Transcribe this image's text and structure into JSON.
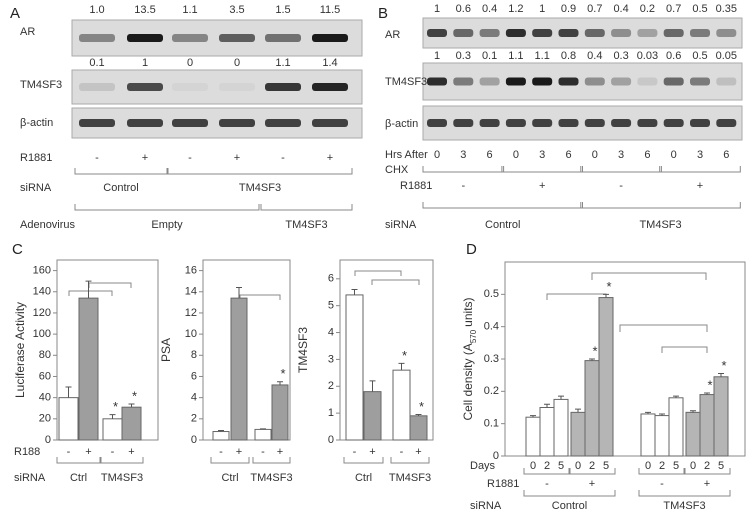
{
  "panels": [
    {
      "label": "A",
      "blots": [
        {
          "name": "AR",
          "quant": [
            "1.0",
            "13.5",
            "1.1",
            "3.5",
            "1.5",
            "11.5"
          ]
        },
        {
          "name": "TM4SF3",
          "quant": [
            "0.1",
            "1",
            "0",
            "0",
            "1.1",
            "1.4"
          ]
        },
        {
          "name": "β-actin"
        }
      ],
      "rows": [
        {
          "label": "R1881",
          "labels": [
            "-",
            "+",
            "-",
            "+",
            "-",
            "+"
          ]
        },
        {
          "label": "siRNA",
          "labels": [
            "Control",
            "TM4SF3"
          ]
        },
        {
          "label": "Adenovirus",
          "labels": [
            "Empty",
            "TM4SF3"
          ]
        }
      ]
    },
    {
      "label": "B",
      "blots": [
        {
          "name": "AR",
          "quant": [
            "1",
            "0.6",
            "0.4",
            "1.2",
            "1",
            "0.9",
            "0.7",
            "0.4",
            "0.2",
            "0.7",
            "0.5",
            "0.35"
          ]
        },
        {
          "name": "TM4SF3",
          "quant": [
            "1",
            "0.3",
            "0.1",
            "1.1",
            "1.1",
            "0.8",
            "0.4",
            "0.3",
            "0.03",
            "0.6",
            "0.5",
            "0.05"
          ]
        },
        {
          "name": "β-actin"
        }
      ],
      "rows": [
        {
          "label": [
            "Hrs After",
            "CHX"
          ],
          "labels": [
            "0",
            "3",
            "6",
            "0",
            "3",
            "6",
            "0",
            "3",
            "6",
            "0",
            "3",
            "6"
          ]
        },
        {
          "label": "R1881",
          "labels": [
            "-",
            "+",
            "-",
            "+"
          ]
        },
        {
          "label": "siRNA",
          "labels": [
            "Control",
            "TM4SF3"
          ]
        }
      ]
    }
  ],
  "chart_data": [
    {
      "type": "bar",
      "panel": "C",
      "ylabel": "Luciferase Activity",
      "ylim": [
        0,
        170
      ],
      "yticks": [
        0,
        20,
        40,
        60,
        80,
        100,
        120,
        140,
        160
      ],
      "values": [
        40,
        134,
        20,
        31
      ],
      "errors": [
        10,
        16,
        4,
        3
      ],
      "colors": [
        "#ffffff",
        "#9e9e9e",
        "#ffffff",
        "#9e9e9e"
      ],
      "markers": [
        null,
        null,
        "*",
        "*"
      ],
      "category_label": "R188",
      "categories": [
        "-",
        "+",
        "-",
        "+"
      ],
      "rows": [
        {
          "label": "siRNA",
          "labels": [
            "Ctrl",
            "TM4SF3"
          ]
        }
      ]
    },
    {
      "type": "bar",
      "ylabel": "PSA",
      "ylim": [
        0,
        17
      ],
      "yticks": [
        0,
        2,
        4,
        6,
        8,
        10,
        12,
        14,
        16
      ],
      "values": [
        0.8,
        13.4,
        1.0,
        5.2
      ],
      "errors": [
        0.1,
        1.0,
        0.05,
        0.3
      ],
      "colors": [
        "#ffffff",
        "#9e9e9e",
        "#ffffff",
        "#9e9e9e"
      ],
      "markers": [
        null,
        null,
        null,
        "*"
      ],
      "categories": [
        "-",
        "+",
        "-",
        "+"
      ],
      "rows": [
        {
          "labels": [
            "Ctrl",
            "TM4SF3"
          ]
        }
      ]
    },
    {
      "type": "bar",
      "ylabel": "TM4SF3",
      "ylim": [
        0,
        6.7
      ],
      "yticks": [
        0,
        1,
        2,
        3,
        4,
        5,
        6
      ],
      "values": [
        5.4,
        1.8,
        2.6,
        0.9
      ],
      "errors": [
        0.2,
        0.4,
        0.25,
        0.05
      ],
      "colors": [
        "#ffffff",
        "#9e9e9e",
        "#ffffff",
        "#9e9e9e"
      ],
      "markers": [
        null,
        null,
        "*",
        "*"
      ],
      "categories": [
        "-",
        "+",
        "-",
        "+"
      ],
      "rows": [
        {
          "labels": [
            "Ctrl",
            "TM4SF3"
          ]
        }
      ]
    },
    {
      "type": "bar",
      "panel": "D",
      "ylabel": "Cell density (A",
      "ylabel_sub": "570",
      "ylabel_end": "units)",
      "ylim": [
        0,
        0.6
      ],
      "yticks": [
        0,
        0.1,
        0.2,
        0.3,
        0.4,
        0.5
      ],
      "values": [
        0.12,
        0.15,
        0.175,
        0.135,
        0.295,
        0.49,
        0.13,
        0.125,
        0.18,
        0.135,
        0.19,
        0.245
      ],
      "errors": [
        0.005,
        0.01,
        0.01,
        0.01,
        0.005,
        0.01,
        0.005,
        0.005,
        0.005,
        0.005,
        0.005,
        0.01
      ],
      "colors": [
        "#ffffff",
        "#ffffff",
        "#ffffff",
        "#b5b5b5",
        "#b5b5b5",
        "#b5b5b5",
        "#ffffff",
        "#ffffff",
        "#ffffff",
        "#b5b5b5",
        "#b5b5b5",
        "#b5b5b5"
      ],
      "markers": [
        null,
        null,
        null,
        null,
        "*",
        "*",
        null,
        null,
        null,
        null,
        "*",
        "*"
      ],
      "category_label": "Days",
      "categories": [
        "0",
        "2",
        "5",
        "0",
        "2",
        "5",
        "0",
        "2",
        "5",
        "0",
        "2",
        "5"
      ],
      "rows": [
        {
          "label": "R1881",
          "labels": [
            "-",
            "+",
            "-",
            "+"
          ]
        },
        {
          "label": "siRNA",
          "labels": [
            "Control",
            "TM4SF3"
          ]
        }
      ]
    }
  ]
}
